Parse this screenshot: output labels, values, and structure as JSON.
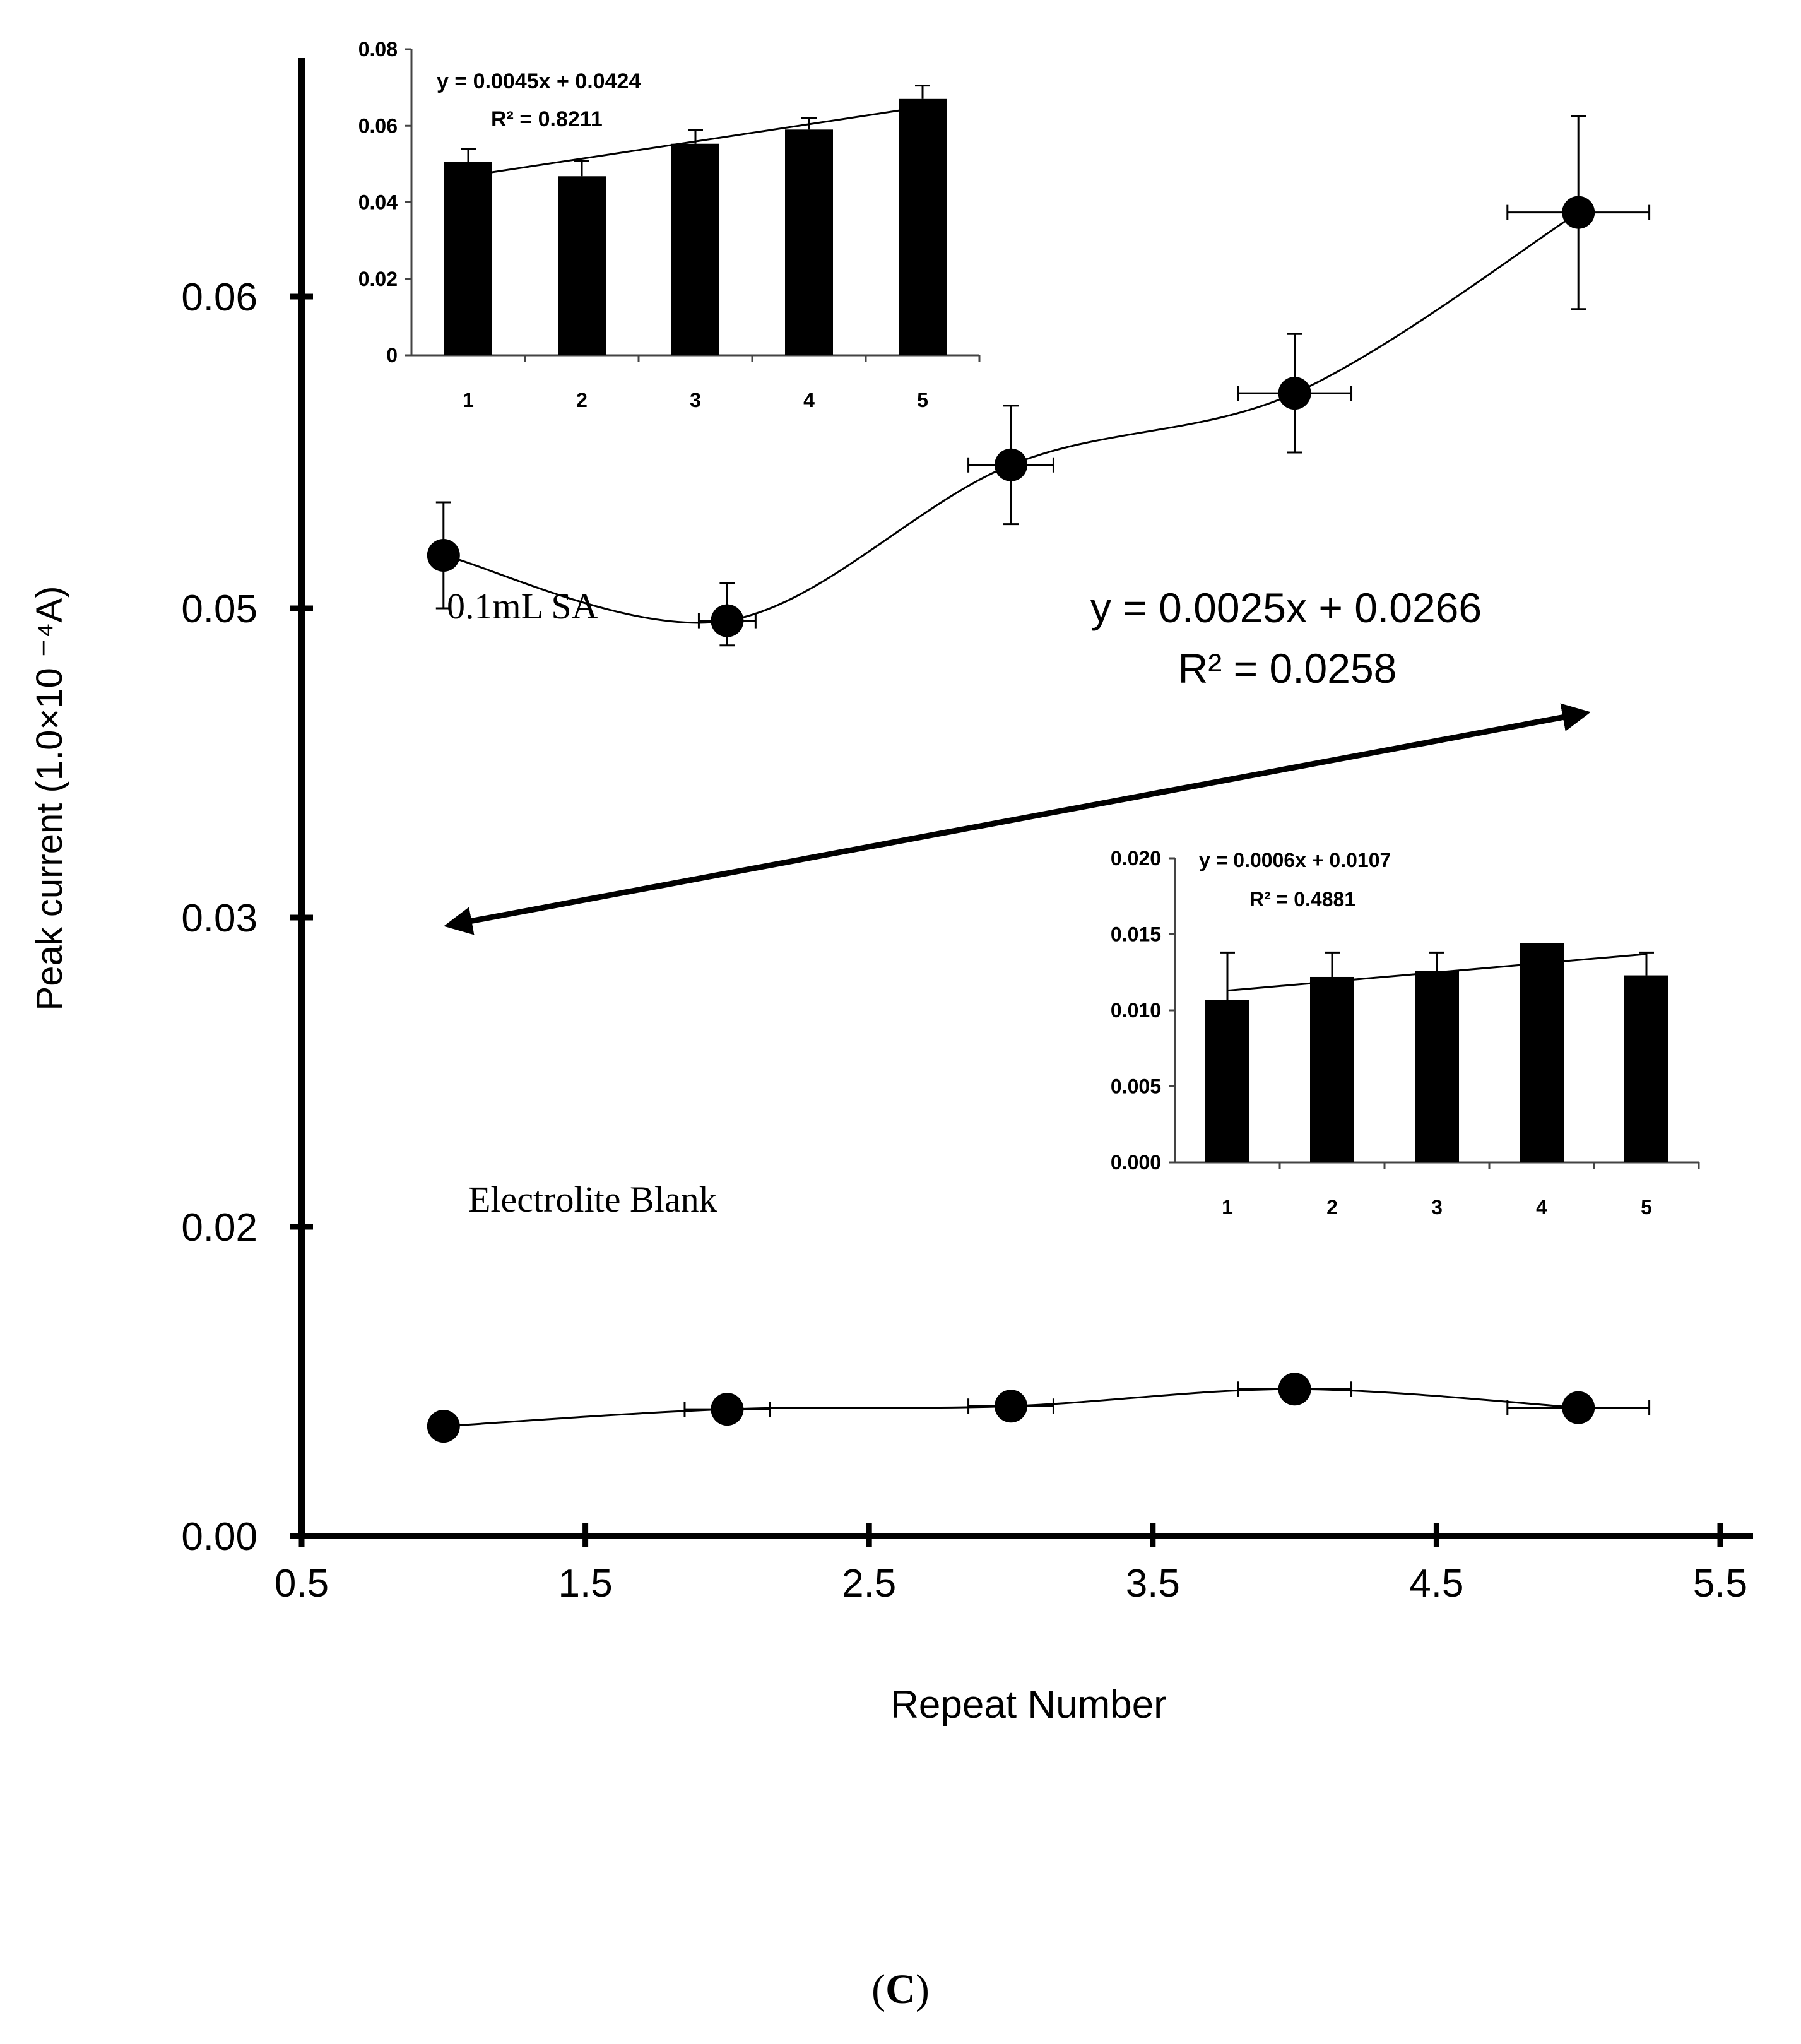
{
  "chart_data": [
    {
      "id": "main",
      "type": "line",
      "xlabel": "Repeat Number",
      "ylabel": "Peak current (1.0×10 ⁻⁴A)",
      "xlim": [
        0.5,
        5.5
      ],
      "ylim": [
        0,
        0.065
      ],
      "xticks": [
        "0.5",
        "1.5",
        "2.5",
        "3.5",
        "4.5",
        "5.5"
      ],
      "yticks": [
        {
          "value": 0.0,
          "label": "0.00"
        },
        {
          "value": 0.02,
          "label": "0.02"
        },
        {
          "value": 0.03,
          "label": "0.03"
        },
        {
          "value": 0.05,
          "label": "0.05"
        },
        {
          "value": 0.06,
          "label": "0.06"
        }
      ],
      "series": [
        {
          "name": "0.1mL SA",
          "x": [
            1,
            2,
            3,
            4,
            5
          ],
          "y": [
            0.0517,
            0.0492,
            0.0546,
            0.0569,
            0.0627
          ],
          "yerr": [
            0.0017,
            0.0016,
            0.0019,
            0.0019,
            0.0031
          ],
          "xerr": [
            0.0,
            0.1,
            0.15,
            0.2,
            0.25
          ]
        },
        {
          "name": "Electrolite Blank",
          "x": [
            1,
            2,
            3,
            4,
            5
          ],
          "y": [
            0.0071,
            0.0082,
            0.0084,
            0.0095,
            0.0083
          ],
          "yerr": [
            0.0,
            0.0,
            0.0,
            0.0,
            0.0
          ],
          "xerr": [
            0.0,
            0.15,
            0.15,
            0.2,
            0.25
          ]
        }
      ],
      "annotation": {
        "equation": "y = 0.0025x + 0.0266",
        "r2": "R² = 0.0258"
      }
    },
    {
      "id": "inset_sa",
      "type": "bar",
      "categories": [
        "1",
        "2",
        "3",
        "4",
        "5"
      ],
      "values": [
        0.0505,
        0.0468,
        0.0553,
        0.059,
        0.067
      ],
      "errors": [
        0.0035,
        0.004,
        0.0035,
        0.003,
        0.0035
      ],
      "ylim": [
        0,
        0.08
      ],
      "yticks": [
        "0",
        "0.02",
        "0.04",
        "0.06",
        "0.08"
      ],
      "trendline": {
        "slope": 0.0045,
        "intercept": 0.0424
      },
      "equation": "y = 0.0045x + 0.0424",
      "r2": "R² = 0.8211"
    },
    {
      "id": "inset_blank",
      "type": "bar",
      "categories": [
        "1",
        "2",
        "3",
        "4",
        "5"
      ],
      "values": [
        0.0107,
        0.0122,
        0.0126,
        0.0144,
        0.0123
      ],
      "errors": [
        0.0031,
        0.0016,
        0.0012,
        0.0,
        0.0015
      ],
      "ylim": [
        0,
        0.02
      ],
      "yticks": [
        "0.000",
        "0.005",
        "0.010",
        "0.015",
        "0.020"
      ],
      "trendline": {
        "slope": 0.0006,
        "intercept": 0.0107
      },
      "equation": "y = 0.0006x + 0.0107",
      "r2": "R² = 0.4881"
    }
  ],
  "panel_label": "C"
}
